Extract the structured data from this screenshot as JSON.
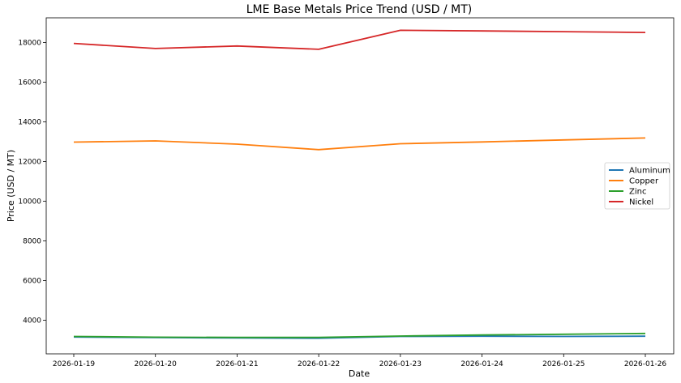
{
  "chart_data": {
    "type": "line",
    "title": "LME Base Metals Price Trend (USD / MT)",
    "xlabel": "Date",
    "ylabel": "Price (USD / MT)",
    "x": [
      "2026-01-19",
      "2026-01-20",
      "2026-01-21",
      "2026-01-22",
      "2026-01-23",
      "2026-01-24",
      "2026-01-25",
      "2026-01-26"
    ],
    "yticks": [
      4000,
      6000,
      8000,
      10000,
      12000,
      14000,
      16000,
      18000
    ],
    "ylim": [
      2300,
      19250
    ],
    "grid": false,
    "legend_position": "center-right",
    "series": [
      {
        "name": "Aluminum",
        "color": "#1f77b4",
        "values": [
          3150,
          3120,
          3100,
          3090,
          3180,
          3190,
          3180,
          3190
        ]
      },
      {
        "name": "Copper",
        "color": "#ff7f0e",
        "values": [
          12980,
          13040,
          12880,
          12600,
          12900,
          12990,
          13090,
          13190
        ]
      },
      {
        "name": "Zinc",
        "color": "#2ca02c",
        "values": [
          3180,
          3140,
          3130,
          3130,
          3200,
          3250,
          3290,
          3330
        ]
      },
      {
        "name": "Nickel",
        "color": "#d62728",
        "values": [
          17960,
          17700,
          17830,
          17660,
          18620,
          18590,
          18550,
          18510
        ]
      }
    ]
  }
}
